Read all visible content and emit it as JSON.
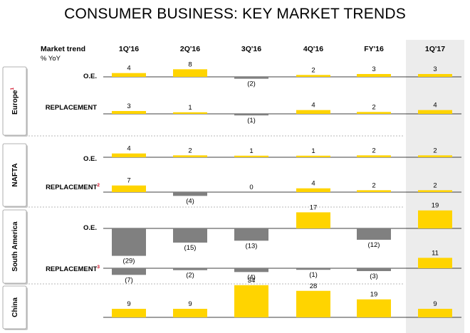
{
  "title": "CONSUMER BUSINESS: KEY MARKET TRENDS",
  "header": {
    "market_trend": "Market trend",
    "unit": "% YoY"
  },
  "colors": {
    "positive": "#ffd400",
    "negative": "#808080",
    "highlight": "#ececec"
  },
  "chart_data": {
    "type": "bar",
    "categories": [
      "1Q'16",
      "2Q'16",
      "3Q'16",
      "4Q'16",
      "FY'16",
      "1Q'17"
    ],
    "highlighted_category": "1Q'17",
    "regions": [
      {
        "name": "Europe",
        "footnote": "1",
        "rows": [
          {
            "label": "O.E.",
            "footnote": "",
            "values": [
              4,
              8,
              -2,
              2,
              3,
              3
            ],
            "value_labels": [
              "4",
              "8",
              "(2)",
              "2",
              "3",
              "3"
            ]
          },
          {
            "label": "REPLACEMENT",
            "footnote": "",
            "values": [
              3,
              1,
              -1,
              4,
              2,
              4
            ],
            "value_labels": [
              "3",
              "1",
              "(1)",
              "4",
              "2",
              "4"
            ]
          }
        ]
      },
      {
        "name": "NAFTA",
        "footnote": "",
        "rows": [
          {
            "label": "O.E.",
            "footnote": "",
            "values": [
              4,
              2,
              1,
              1,
              2,
              2
            ],
            "value_labels": [
              "4",
              "2",
              "1",
              "1",
              "2",
              "2"
            ]
          },
          {
            "label": "REPLACEMENT",
            "footnote": "2",
            "values": [
              7,
              -4,
              0,
              4,
              2,
              2
            ],
            "value_labels": [
              "7",
              "(4)",
              "0",
              "4",
              "2",
              "2"
            ]
          }
        ]
      },
      {
        "name": "South America",
        "footnote": "",
        "rows": [
          {
            "label": "O.E.",
            "footnote": "",
            "values": [
              -29,
              -15,
              -13,
              17,
              -12,
              19
            ],
            "value_labels": [
              "(29)",
              "(15)",
              "(13)",
              "17",
              "(12)",
              "19"
            ]
          },
          {
            "label": "REPLACEMENT",
            "footnote": "3",
            "values": [
              -7,
              -2,
              -4,
              -1,
              -3,
              11
            ],
            "value_labels": [
              "(7)",
              "(2)",
              "(4)",
              "(1)",
              "(3)",
              "11"
            ]
          }
        ]
      },
      {
        "name": "China",
        "footnote": "",
        "rows": [
          {
            "label": "",
            "footnote": "",
            "values": [
              9,
              9,
              34,
              28,
              19,
              9
            ],
            "value_labels": [
              "9",
              "9",
              "34",
              "28",
              "19",
              "9"
            ]
          }
        ]
      }
    ]
  }
}
